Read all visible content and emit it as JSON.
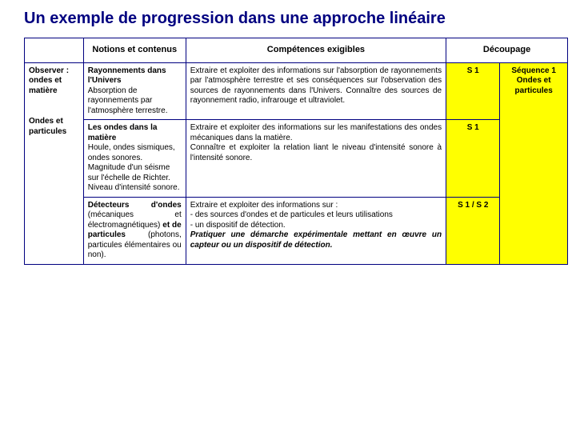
{
  "title": "Un exemple de progression dans une approche linéaire",
  "colors": {
    "title": "#000080",
    "border": "#000080",
    "highlight_bg": "#ffff00",
    "page_bg": "#ffffff",
    "text": "#000000"
  },
  "header": {
    "blank": "",
    "notions": "Notions et contenus",
    "competences": "Compétences exigibles",
    "decoupage": "Découpage"
  },
  "row_header": {
    "line1": "Observer :",
    "line2": "ondes et matière",
    "line3": "Ondes et particules"
  },
  "rows": [
    {
      "notions_title": "Rayonnements dans l'Univers",
      "notions_body": "Absorption de rayonnements par l'atmosphère terrestre.",
      "competences": "Extraire et exploiter des informations sur l'absorption de rayonnements par l'atmosphère terrestre et ses conséquences sur l'observation des sources de rayonnements dans l'Univers. Connaître des sources de rayonnement radio, infrarouge et ultraviolet.",
      "dec1": "S 1"
    },
    {
      "notions_title": "Les ondes dans la matière",
      "notions_body": "Houle, ondes sismiques, ondes sonores.\nMagnitude d'un séisme sur l'échelle de Richter.\nNiveau d'intensité sonore.",
      "competences": "Extraire et exploiter des informations sur les manifestations des ondes mécaniques dans la matière.\nConnaître et exploiter la relation liant le niveau d'intensité sonore à l'intensité sonore.",
      "dec1": "S 1"
    },
    {
      "notions_title_html": "<b>Détecteurs d'ondes</b> (mécaniques et électromagnétiques) <b>et de particules</b> (photons, particules élémentaires ou non).",
      "competences_plain": "Extraire et exploiter des informations sur :\n- des sources d'ondes et de particules et leurs utilisations\n- un dispositif de détection.",
      "competences_italic": "Pratiquer une démarche expérimentale mettant en œuvre un capteur ou un dispositif de détection.",
      "dec1": "S 1 / S 2"
    }
  ],
  "sequence": {
    "line1": "Séquence 1",
    "line2": "Ondes et particules"
  }
}
